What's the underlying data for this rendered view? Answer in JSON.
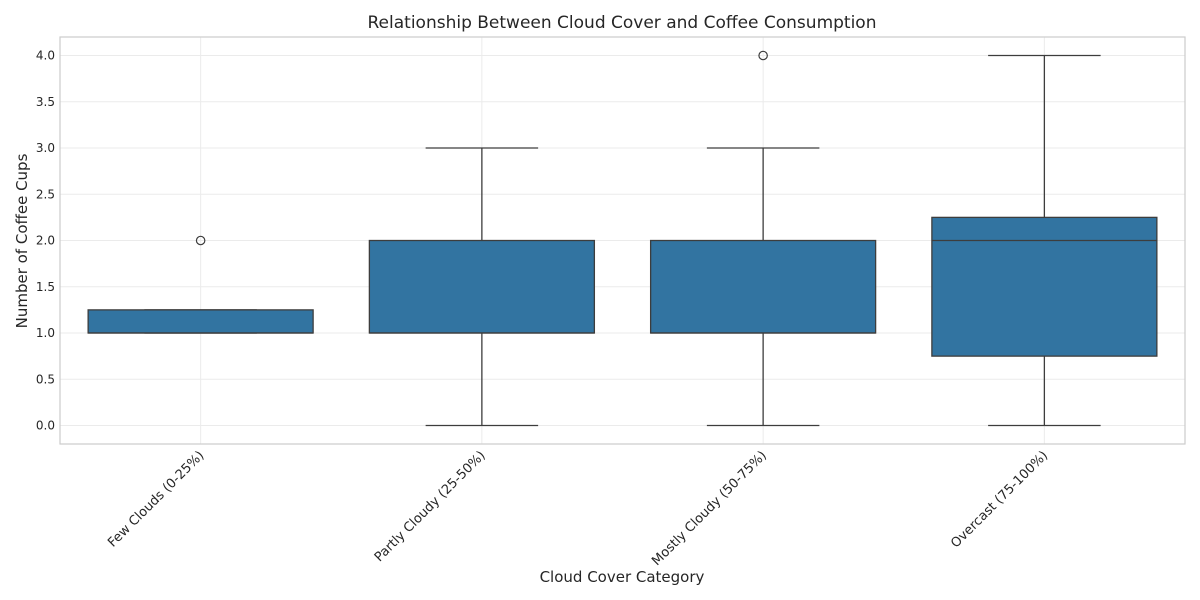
{
  "chart_data": {
    "type": "box",
    "title": "Relationship Between Cloud Cover and Coffee Consumption",
    "xlabel": "Cloud Cover Category",
    "ylabel": "Number of Coffee Cups",
    "ylim": [
      -0.2,
      4.2
    ],
    "yticks": [
      0.0,
      0.5,
      1.0,
      1.5,
      2.0,
      2.5,
      3.0,
      3.5,
      4.0
    ],
    "ytick_labels": [
      "0.0",
      "0.5",
      "1.0",
      "1.5",
      "2.0",
      "2.5",
      "3.0",
      "3.5",
      "4.0"
    ],
    "grid": true,
    "categories": [
      "Few Clouds (0-25%)",
      "Partly Cloudy (25-50%)",
      "Mostly Cloudy (50-75%)",
      "Overcast (75-100%)"
    ],
    "boxes": [
      {
        "whisker_low": 1.0,
        "q1": 1.0,
        "median": 1.0,
        "q3": 1.25,
        "whisker_high": 1.25,
        "outliers": [
          2.0
        ]
      },
      {
        "whisker_low": 0.0,
        "q1": 1.0,
        "median": 1.0,
        "q3": 2.0,
        "whisker_high": 3.0,
        "outliers": []
      },
      {
        "whisker_low": 0.0,
        "q1": 1.0,
        "median": 1.0,
        "q3": 2.0,
        "whisker_high": 3.0,
        "outliers": [
          4.0
        ]
      },
      {
        "whisker_low": 0.0,
        "q1": 0.75,
        "median": 2.0,
        "q3": 2.25,
        "whisker_high": 4.0,
        "outliers": []
      }
    ],
    "colors": {
      "box_fill": "#3274a1",
      "box_edge": "#3d3d3d",
      "grid": "#ebebeb",
      "frame": "#cccccc",
      "text": "#262626"
    }
  }
}
